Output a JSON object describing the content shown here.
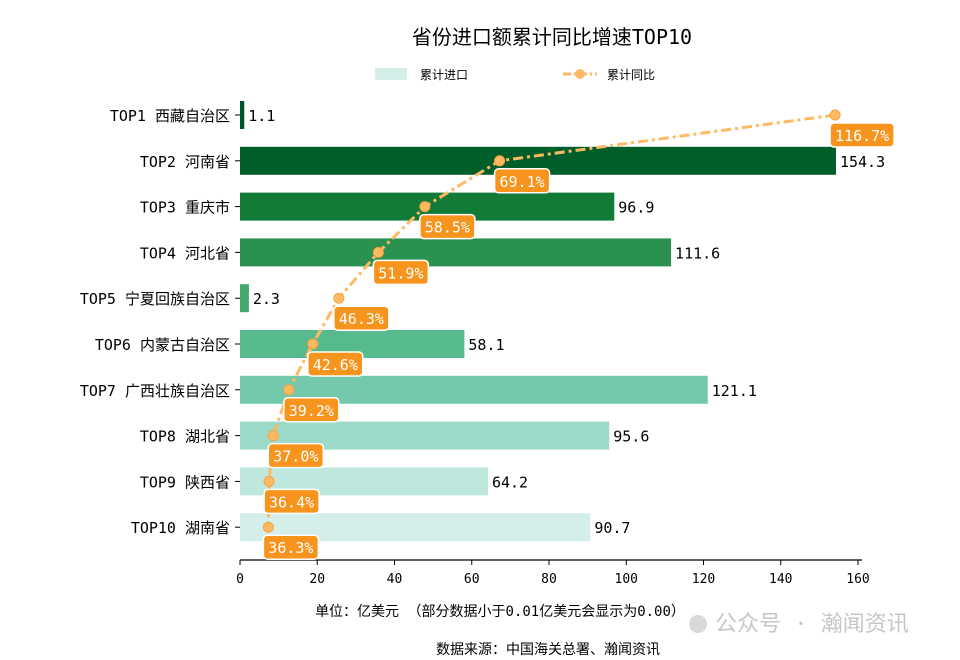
{
  "chart_data": {
    "type": "bar",
    "orientation": "horizontal",
    "title": "省份进口额累计同比增速TOP10",
    "categories": [
      "TOP1 西藏自治区",
      "TOP2 河南省",
      "TOP3 重庆市",
      "TOP4 河北省",
      "TOP5 宁夏回族自治区",
      "TOP6 内蒙古自治区",
      "TOP7 广西壮族自治区",
      "TOP8 湖北省",
      "TOP9 陕西省",
      "TOP10 湖南省"
    ],
    "series": [
      {
        "name": "累计进口",
        "type": "bar",
        "values": [
          1.1,
          154.3,
          96.9,
          111.6,
          2.3,
          58.1,
          121.1,
          95.6,
          64.2,
          90.7
        ],
        "colors": [
          "#00532a",
          "#005e2a",
          "#137b38",
          "#2a9150",
          "#40a96b",
          "#57ba8c",
          "#74c9ad",
          "#9bd9c9",
          "#bee8de",
          "#d4efea"
        ]
      },
      {
        "name": "累计同比",
        "type": "line",
        "unit": "%",
        "values": [
          116.7,
          69.1,
          58.5,
          51.9,
          46.3,
          42.6,
          39.2,
          37.0,
          36.4,
          36.3
        ],
        "color": "#ffb962",
        "label_color": "#f7941d",
        "secondary_axis_hidden": true
      }
    ],
    "xlim": [
      0,
      160
    ],
    "xticks": [
      0,
      20,
      40,
      60,
      80,
      100,
      120,
      140,
      160
    ],
    "xlabel": "单位：亿美元  （部分数据小于0.01亿美元会显示为0.00）",
    "legend_position": "top",
    "grid": false
  },
  "source": "数据来源：中国海关总署、瀚闻资讯",
  "watermark": "公众号 · 瀚闻资讯"
}
